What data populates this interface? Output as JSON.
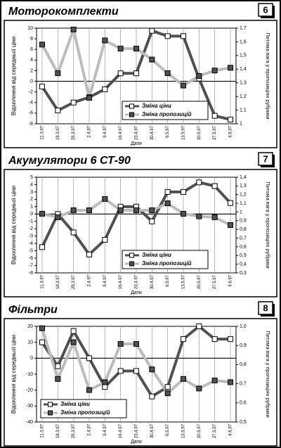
{
  "chart_data": [
    {
      "type": "line",
      "title": "Моторокомплекти",
      "panel_number": "6",
      "categories": [
        "11.3.97",
        "18.3.97",
        "25.3.97",
        "2.4.97",
        "9.4.97",
        "16.4.97",
        "23.4.97",
        "30.4.97",
        "6.5.97",
        "13.5.97",
        "20.5.97",
        "27.5.97",
        "4.6.97"
      ],
      "x_label": "Дати",
      "y_label": "Відхилення від середньої ціни",
      "y2_label": "Питома вага у пропозиціях рубрики",
      "ylim": [
        -8,
        10
      ],
      "yticks": [
        -8,
        -6,
        -4,
        -2,
        0,
        2,
        4,
        6,
        8,
        10
      ],
      "y2lim": [
        1,
        1.7
      ],
      "y2ticks": [
        1,
        {
          "value": 1.1,
          "label": "1,1"
        },
        {
          "value": 1.2,
          "label": "1,2"
        },
        {
          "value": 1.3,
          "label": "1,3"
        },
        {
          "value": 1.4,
          "label": "1,4"
        },
        {
          "value": 1.5,
          "label": "1,5"
        },
        {
          "value": 1.6,
          "label": "1,6"
        },
        {
          "value": 1.7,
          "label": "1,7"
        }
      ],
      "grid": true,
      "legend": "lower center",
      "series": [
        {
          "name": "Зміна ціни",
          "color": "#505050",
          "marker_color": "#ffffff",
          "values": [
            -1,
            -5.5,
            -4,
            -3,
            -1.5,
            1.5,
            1.5,
            9.5,
            8.5,
            8.5,
            0.5,
            -6.5,
            -7.2
          ]
        },
        {
          "name": "Зміна пропозицій",
          "color": "#bcbcbc",
          "marker_color": "#505050",
          "axis": "y2",
          "values": [
            1.58,
            1.37,
            1.69,
            1.19,
            1.61,
            1.55,
            1.55,
            1.47,
            1.37,
            1.28,
            1.35,
            1.39,
            1.41
          ]
        }
      ]
    },
    {
      "type": "line",
      "title": "Акумулятори 6 СТ-90",
      "panel_number": "7",
      "categories": [
        "11.3.97",
        "18.3.97",
        "25.3.97",
        "2.4.97",
        "9.4.97",
        "16.4.97",
        "23.4.97",
        "30.4.97",
        "6.5.97",
        "13.5.97",
        "20.5.97",
        "27.5.97",
        "4.6.97"
      ],
      "x_label": "Дати",
      "y_label": "Відхилення від середньої ціни",
      "y2_label": "Питома вага у пропозиціях рубрики",
      "ylim": [
        -8,
        5
      ],
      "yticks": [
        -8,
        -7,
        -6,
        -5,
        -4,
        -3,
        -2,
        -1,
        0,
        1,
        2,
        3,
        4,
        5
      ],
      "y2lim": [
        0.3,
        1.4
      ],
      "y2ticks": [
        {
          "value": 0.3,
          "label": "0,3"
        },
        {
          "value": 0.4,
          "label": "0,4"
        },
        {
          "value": 0.5,
          "label": "0,5"
        },
        {
          "value": 0.6,
          "label": "0,6"
        },
        {
          "value": 0.7,
          "label": "0,7"
        },
        {
          "value": 0.8,
          "label": "0,8"
        },
        {
          "value": 0.9,
          "label": "0,9"
        },
        1,
        {
          "value": 1.1,
          "label": "1,1"
        },
        {
          "value": 1.2,
          "label": "1,2"
        },
        {
          "value": 1.3,
          "label": "1,3"
        },
        {
          "value": 1.4,
          "label": "1,4"
        }
      ],
      "grid": true,
      "legend": "lower center",
      "series": [
        {
          "name": "Зміна ціни",
          "color": "#505050",
          "marker_color": "#ffffff",
          "values": [
            -4.5,
            0,
            -2.5,
            -5.5,
            -3.5,
            1,
            1,
            -1,
            3,
            3,
            4.3,
            3.8,
            1.5
          ]
        },
        {
          "name": "Зміна пропозицій",
          "color": "#bcbcbc",
          "marker_color": "#505050",
          "axis": "y2",
          "values": [
            0.98,
            0.94,
            1.02,
            1.02,
            1.15,
            1.02,
            1.02,
            1.02,
            1.1,
            0.98,
            0.95,
            0.94,
            0.85
          ]
        }
      ]
    },
    {
      "type": "line",
      "title": "Фільтри",
      "panel_number": "8",
      "categories": [
        "11.3.97",
        "18.3.97",
        "25.3.97",
        "2.4.97",
        "9.4.97",
        "16.4.97",
        "23.4.97",
        "30.4.97",
        "6.5.97",
        "13.5.97",
        "20.5.97",
        "27.5.97",
        "4.6.97"
      ],
      "x_label": "Дати",
      "y_label": "Відхилення від середньої ціни",
      "y2_label": "Питома вага у пропозиціях рубрики",
      "ylim": [
        -40,
        20
      ],
      "yticks": [
        -40,
        -30,
        -20,
        -10,
        0,
        10,
        20
      ],
      "y2lim": [
        0.5,
        1
      ],
      "y2ticks": [
        {
          "value": 0.5,
          "label": "0,5"
        },
        {
          "value": 0.6,
          "label": "0,6"
        },
        {
          "value": 0.7,
          "label": "0,7"
        },
        {
          "value": 0.8,
          "label": "0,8"
        },
        {
          "value": 0.9,
          "label": "0,9"
        },
        {
          "value": 1,
          "label": "1,0"
        }
      ],
      "grid": true,
      "legend": "lower left",
      "series": [
        {
          "name": "Зміна ціни",
          "color": "#505050",
          "marker_color": "#ffffff",
          "values": [
            10,
            -5,
            17,
            0,
            -18,
            -8,
            -8,
            -24,
            -18,
            12,
            20,
            12,
            12
          ]
        },
        {
          "name": "Зміна пропозицій",
          "color": "#bcbcbc",
          "marker_color": "#505050",
          "axis": "y2",
          "values": [
            0.99,
            0.725,
            0.917,
            0.667,
            0.708,
            0.908,
            0.908,
            0.775,
            0.65,
            0.725,
            0.675,
            0.717,
            0.708
          ]
        }
      ]
    }
  ]
}
